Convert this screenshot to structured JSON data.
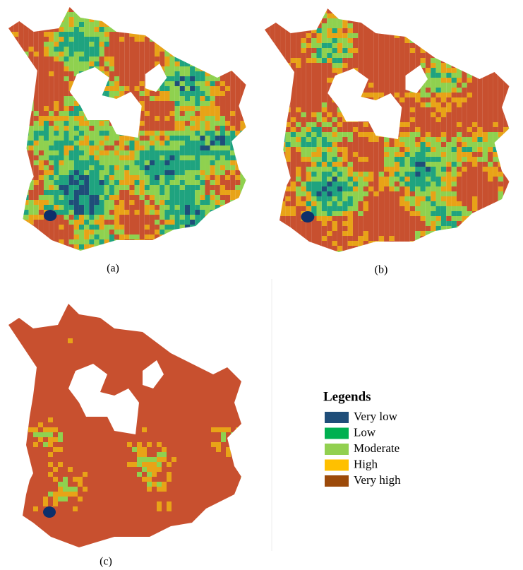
{
  "panels": [
    {
      "label": "(a)"
    },
    {
      "label": "(b)"
    },
    {
      "label": "(c)"
    }
  ],
  "legend": {
    "title": "Legends",
    "items": [
      {
        "name": "Very low",
        "color": "#1f4e79"
      },
      {
        "name": "Low",
        "color": "#00b050"
      },
      {
        "name": "Moderate",
        "color": "#92d050"
      },
      {
        "name": "High",
        "color": "#ffc000"
      },
      {
        "name": "Very high",
        "color": "#9c4a0a"
      }
    ]
  }
}
